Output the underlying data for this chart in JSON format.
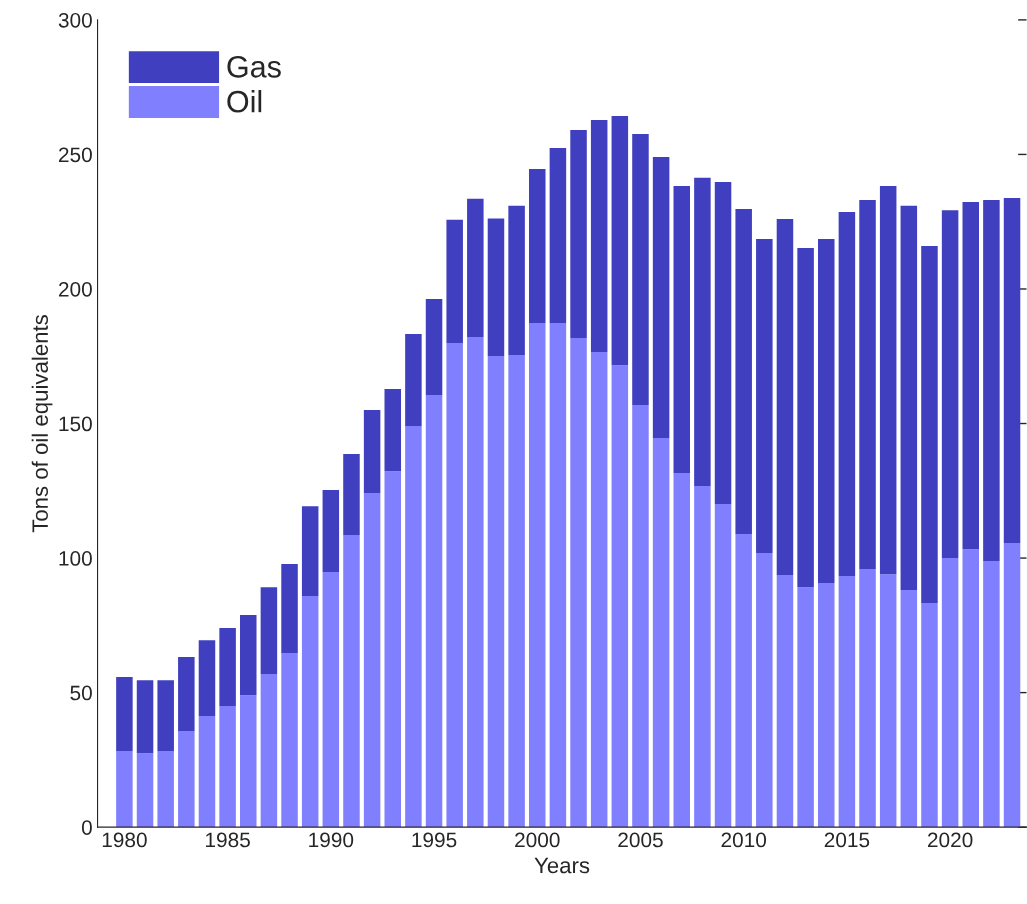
{
  "chart_data": {
    "type": "bar",
    "stacked": true,
    "xlabel": "Years",
    "ylabel": "Tons of oil equivalents",
    "x": [
      1980,
      1981,
      1982,
      1983,
      1984,
      1985,
      1986,
      1987,
      1988,
      1989,
      1990,
      1991,
      1992,
      1993,
      1994,
      1995,
      1996,
      1997,
      1998,
      1999,
      2000,
      2001,
      2002,
      2003,
      2004,
      2005,
      2006,
      2007,
      2008,
      2009,
      2010,
      2011,
      2012,
      2013,
      2014,
      2015,
      2016,
      2017,
      2018,
      2019,
      2020,
      2021,
      2022,
      2023
    ],
    "series": [
      {
        "name": "Oil",
        "color": "#8080ff",
        "values": [
          28.3,
          27.5,
          28.3,
          35.7,
          41.3,
          45,
          49,
          56.9,
          64.7,
          85.9,
          94.8,
          108.6,
          124.2,
          132.3,
          149.1,
          160.6,
          179.9,
          182.2,
          175.1,
          175.5,
          187.4,
          187.4,
          181.8,
          176.6,
          171.7,
          156.9,
          144.6,
          131.6,
          126.8,
          120.1,
          108.9,
          101.9,
          93.7,
          89.2,
          90.7,
          93.3,
          95.9,
          94,
          88.1,
          83.3,
          100,
          103.3,
          98.9,
          105.6
        ]
      },
      {
        "name": "Gas",
        "color": "#3f3fbf",
        "values": [
          27.5,
          27.1,
          26.3,
          27.5,
          28.2,
          29,
          29.8,
          32.3,
          33.1,
          33.4,
          30.5,
          30.1,
          30.8,
          30.5,
          34.2,
          35.7,
          45.8,
          51.3,
          51.1,
          55.4,
          57.2,
          65,
          77.3,
          86.2,
          92.6,
          100.7,
          104.4,
          106.7,
          114.5,
          119.7,
          120.8,
          116.7,
          132.3,
          126,
          127.9,
          135.3,
          137.2,
          144.3,
          142.8,
          132.7,
          129.3,
          129,
          134.2,
          128.2
        ]
      }
    ],
    "xlim": [
      1978.7,
      2023.7
    ],
    "xticks": [
      1980,
      1985,
      1990,
      1995,
      2000,
      2005,
      2010,
      2015,
      2020
    ],
    "ylim": [
      0,
      300
    ],
    "yticks": [
      0,
      50,
      100,
      150,
      200,
      250,
      300
    ],
    "legend": "top left",
    "grid": false
  }
}
